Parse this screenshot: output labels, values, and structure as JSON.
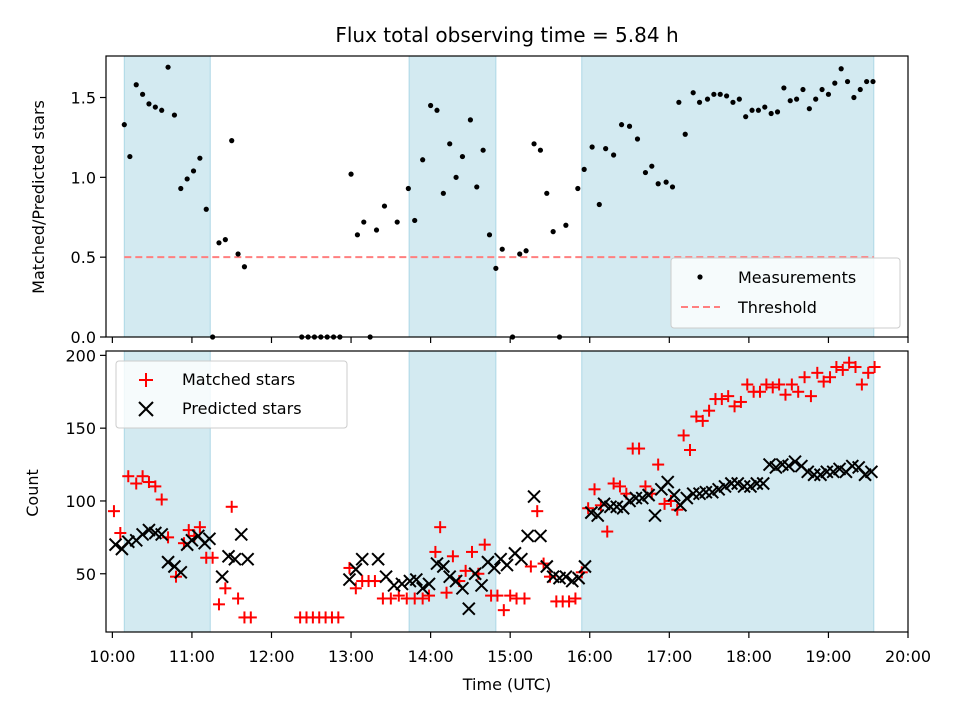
{
  "title": "Flux total observing time = 5.84 h",
  "colors": {
    "measurement": "#000000",
    "threshold": "#ff7f7f",
    "matched": "#ff0000",
    "predicted": "#000000",
    "shade": "#d3eaf1",
    "shade_edge": "#add8e6"
  },
  "chart_data": [
    {
      "type": "scatter",
      "ylabel": "Matched/Predicted stars",
      "xlim": [
        9.92,
        20.0
      ],
      "ylim": [
        0,
        1.76
      ],
      "yticks": [
        0.0,
        0.5,
        1.0,
        1.5
      ],
      "ytick_labels": [
        "0.0",
        "0.5",
        "1.0",
        "1.5"
      ],
      "threshold": 0.5,
      "legend_position": "lower-right",
      "legend": [
        "Measurements",
        "Threshold"
      ],
      "shaded_intervals": [
        [
          10.15,
          11.23
        ],
        [
          13.73,
          14.82
        ],
        [
          15.9,
          19.57
        ]
      ],
      "series": [
        {
          "name": "Measurements",
          "x": [
            10.15,
            10.22,
            10.3,
            10.38,
            10.46,
            10.54,
            10.62,
            10.7,
            10.78,
            10.86,
            10.94,
            11.02,
            11.1,
            11.18,
            11.26,
            11.34,
            11.42,
            11.5,
            11.58,
            11.66,
            12.38,
            12.46,
            12.54,
            12.62,
            12.7,
            12.78,
            12.86,
            13.0,
            13.08,
            13.16,
            13.24,
            13.32,
            13.42,
            13.58,
            13.72,
            13.8,
            13.9,
            14.0,
            14.08,
            14.16,
            14.24,
            14.32,
            14.4,
            14.5,
            14.58,
            14.66,
            14.74,
            14.82,
            14.9,
            15.03,
            15.12,
            15.2,
            15.3,
            15.38,
            15.46,
            15.54,
            15.62,
            15.7,
            15.85,
            15.93,
            16.03,
            16.12,
            16.2,
            16.3,
            16.4,
            16.5,
            16.6,
            16.7,
            16.78,
            16.86,
            16.96,
            17.04,
            17.12,
            17.2,
            17.3,
            17.38,
            17.48,
            17.56,
            17.64,
            17.72,
            17.8,
            17.88,
            17.96,
            18.04,
            18.12,
            18.2,
            18.28,
            18.36,
            18.44,
            18.52,
            18.6,
            18.68,
            18.76,
            18.84,
            18.92,
            19.0,
            19.08,
            19.16,
            19.24,
            19.32,
            19.4,
            19.48,
            19.56
          ],
          "y": [
            1.33,
            1.13,
            1.58,
            1.52,
            1.46,
            1.44,
            1.42,
            1.69,
            1.39,
            0.93,
            0.99,
            1.04,
            1.12,
            0.8,
            0.0,
            0.59,
            0.61,
            1.23,
            0.52,
            0.44,
            0.0,
            0.0,
            0.0,
            0.0,
            0.0,
            0.0,
            0.0,
            1.02,
            0.64,
            0.72,
            0.0,
            0.67,
            0.82,
            0.72,
            0.93,
            0.73,
            1.11,
            1.45,
            1.42,
            0.9,
            1.21,
            1.0,
            1.13,
            1.36,
            0.94,
            1.17,
            0.64,
            0.43,
            0.55,
            0.0,
            0.52,
            0.54,
            1.21,
            1.17,
            0.9,
            0.66,
            0.0,
            0.7,
            0.93,
            1.05,
            1.19,
            0.83,
            1.18,
            1.14,
            1.33,
            1.32,
            1.24,
            1.03,
            1.07,
            0.96,
            0.97,
            0.94,
            1.47,
            1.27,
            1.53,
            1.47,
            1.49,
            1.52,
            1.52,
            1.51,
            1.47,
            1.49,
            1.38,
            1.42,
            1.42,
            1.44,
            1.4,
            1.41,
            1.56,
            1.48,
            1.49,
            1.55,
            1.43,
            1.49,
            1.55,
            1.52,
            1.59,
            1.68,
            1.6,
            1.5,
            1.55,
            1.6,
            1.6
          ]
        }
      ]
    },
    {
      "type": "scatter",
      "ylabel": "Count",
      "xlabel": "Time (UTC)",
      "xlim": [
        9.92,
        20.0
      ],
      "ylim": [
        10,
        203
      ],
      "yticks": [
        50,
        100,
        150,
        200
      ],
      "xticks": [
        10,
        11,
        12,
        13,
        14,
        15,
        16,
        17,
        18,
        19,
        20
      ],
      "xtick_labels": [
        "10:00",
        "11:00",
        "12:00",
        "13:00",
        "14:00",
        "15:00",
        "16:00",
        "17:00",
        "18:00",
        "19:00",
        "20:00"
      ],
      "legend_position": "upper-left",
      "legend": [
        "Matched stars",
        "Predicted stars"
      ],
      "shaded_intervals": [
        [
          10.15,
          11.23
        ],
        [
          13.73,
          14.82
        ],
        [
          15.9,
          19.57
        ]
      ],
      "series": [
        {
          "name": "Matched stars",
          "x": [
            10.02,
            10.1,
            10.2,
            10.3,
            10.38,
            10.46,
            10.54,
            10.62,
            10.7,
            10.8,
            10.9,
            10.96,
            11.03,
            11.1,
            11.18,
            11.26,
            11.34,
            11.42,
            11.5,
            11.58,
            11.66,
            11.74,
            12.36,
            12.44,
            12.52,
            12.6,
            12.68,
            12.76,
            12.84,
            12.98,
            13.06,
            13.14,
            13.22,
            13.3,
            13.4,
            13.5,
            13.6,
            13.7,
            13.8,
            13.9,
            13.98,
            14.06,
            14.12,
            14.2,
            14.28,
            14.36,
            14.44,
            14.52,
            14.6,
            14.68,
            14.76,
            14.84,
            14.92,
            15.0,
            15.08,
            15.18,
            15.26,
            15.34,
            15.42,
            15.5,
            15.58,
            15.66,
            15.74,
            15.82,
            15.9,
            15.98,
            16.06,
            16.14,
            16.22,
            16.3,
            16.38,
            16.46,
            16.54,
            16.62,
            16.7,
            16.78,
            16.86,
            16.94,
            17.02,
            17.1,
            17.18,
            17.26,
            17.34,
            17.42,
            17.5,
            17.58,
            17.66,
            17.74,
            17.82,
            17.9,
            17.98,
            18.06,
            18.14,
            18.22,
            18.3,
            18.38,
            18.46,
            18.54,
            18.62,
            18.7,
            18.78,
            18.86,
            18.94,
            19.02,
            19.1,
            19.18,
            19.26,
            19.34,
            19.42,
            19.5,
            19.58
          ],
          "y": [
            93,
            78,
            117,
            112,
            117,
            113,
            110,
            101,
            75,
            48,
            71,
            80,
            76,
            82,
            61,
            61,
            29,
            40,
            96,
            33,
            20,
            20,
            20,
            20,
            20,
            20,
            20,
            20,
            20,
            54,
            40,
            45,
            45,
            45,
            33,
            33,
            35,
            33,
            33,
            33,
            35,
            65,
            82,
            37,
            62,
            45,
            52,
            65,
            50,
            70,
            35,
            35,
            25,
            35,
            33,
            33,
            55,
            93,
            57,
            48,
            31,
            31,
            31,
            33,
            51,
            95,
            108,
            97,
            79,
            112,
            110,
            105,
            136,
            136,
            110,
            105,
            125,
            98,
            100,
            94,
            145,
            135,
            158,
            155,
            162,
            170,
            170,
            172,
            165,
            168,
            180,
            175,
            175,
            180,
            178,
            180,
            173,
            180,
            175,
            185,
            172,
            188,
            182,
            185,
            192,
            190,
            195,
            192,
            180,
            188,
            192
          ]
        },
        {
          "name": "Predicted stars",
          "x": [
            10.04,
            10.12,
            10.2,
            10.3,
            10.38,
            10.46,
            10.54,
            10.62,
            10.7,
            10.78,
            10.86,
            10.94,
            11.0,
            11.08,
            11.16,
            11.22,
            11.38,
            11.46,
            11.54,
            11.62,
            11.7,
            12.98,
            13.06,
            13.14,
            13.34,
            13.44,
            13.54,
            13.64,
            13.74,
            13.82,
            13.9,
            13.98,
            14.08,
            14.16,
            14.24,
            14.32,
            14.4,
            14.48,
            14.56,
            14.64,
            14.72,
            14.8,
            14.88,
            14.96,
            15.06,
            15.14,
            15.22,
            15.3,
            15.38,
            15.46,
            15.54,
            15.62,
            15.7,
            15.78,
            15.86,
            15.94,
            16.02,
            16.1,
            16.18,
            16.26,
            16.34,
            16.42,
            16.5,
            16.58,
            16.66,
            16.74,
            16.82,
            16.9,
            16.98,
            17.06,
            17.14,
            17.22,
            17.3,
            17.38,
            17.46,
            17.54,
            17.62,
            17.7,
            17.78,
            17.86,
            17.94,
            18.02,
            18.1,
            18.18,
            18.26,
            18.34,
            18.42,
            18.5,
            18.58,
            18.66,
            18.74,
            18.82,
            18.9,
            18.98,
            19.06,
            19.14,
            19.22,
            19.3,
            19.38,
            19.46,
            19.54
          ],
          "y": [
            70,
            67,
            72,
            73,
            77,
            80,
            78,
            77,
            58,
            55,
            51,
            70,
            73,
            76,
            71,
            74,
            48,
            62,
            60,
            77,
            60,
            46,
            53,
            60,
            60,
            48,
            42,
            43,
            45,
            46,
            40,
            43,
            57,
            55,
            48,
            45,
            40,
            26,
            50,
            42,
            58,
            54,
            60,
            56,
            64,
            60,
            76,
            103,
            76,
            55,
            48,
            47,
            48,
            45,
            47,
            55,
            92,
            90,
            98,
            96,
            96,
            95,
            100,
            102,
            102,
            104,
            90,
            108,
            113,
            104,
            97,
            102,
            105,
            105,
            106,
            106,
            108,
            110,
            112,
            112,
            110,
            110,
            112,
            112,
            125,
            123,
            125,
            124,
            127,
            124,
            120,
            118,
            118,
            120,
            120,
            122,
            120,
            124,
            123,
            118,
            120
          ]
        }
      ]
    }
  ]
}
